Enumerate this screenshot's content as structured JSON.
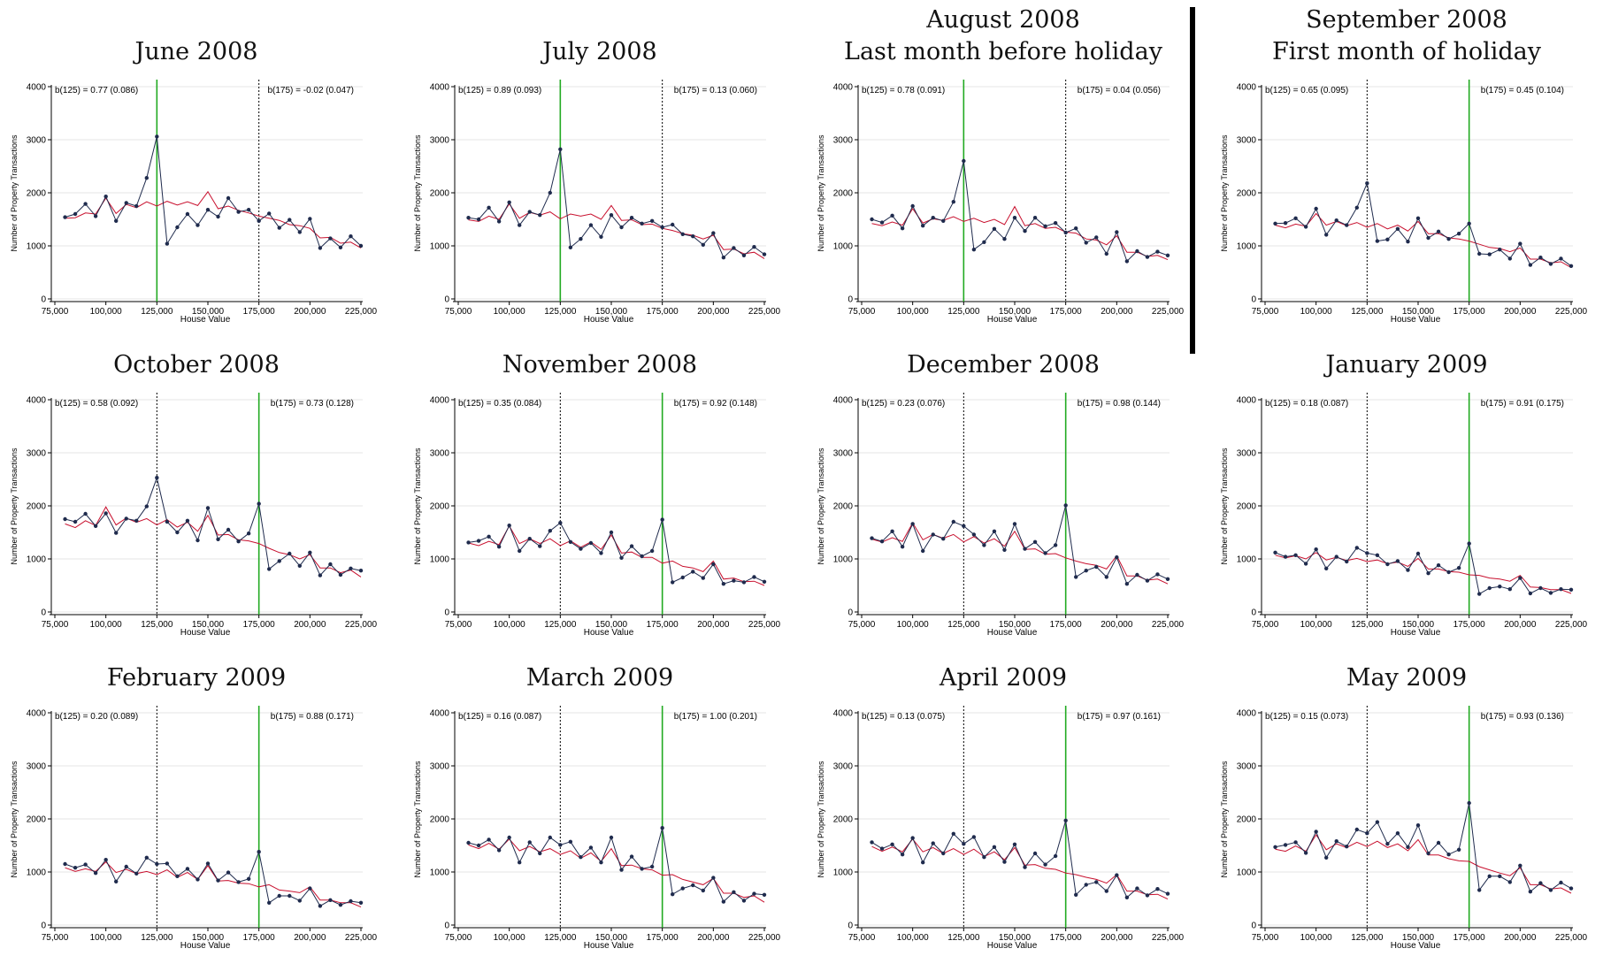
{
  "figure": {
    "colors": {
      "observed": "#1f2b4d",
      "counterfactual": "#c8102e",
      "threshold_active": "#22aa22",
      "threshold_inactive": "#000000"
    }
  },
  "chart_data": [
    {
      "type": "line",
      "title": "June 2008",
      "subtitle": "",
      "xlabel": "House Value",
      "ylabel": "Number of Property Transactions",
      "ylim": [
        0,
        4000
      ],
      "xlim": [
        75000,
        225000
      ],
      "xticks": [
        "75,000",
        "100,000",
        "125,000",
        "150,000",
        "175,000",
        "200,000",
        "225,000"
      ],
      "yticks": [
        "0",
        "1000",
        "2000",
        "3000",
        "4000"
      ],
      "annotations": {
        "left": "b(125) = 0.77 (0.086)",
        "right": "b(175) = -0.02 (0.047)"
      },
      "active_threshold": 125000,
      "inactive_threshold": 175000,
      "observed": [
        1540,
        1600,
        1790,
        1560,
        1930,
        1470,
        1810,
        1750,
        2280,
        3060,
        1040,
        1350,
        1600,
        1390,
        1680,
        1550,
        1900,
        1640,
        1680,
        1470,
        1610,
        1340,
        1490,
        1260,
        1510,
        960,
        1140,
        970,
        1180,
        1000
      ],
      "counterfactual": [
        1520,
        1530,
        1620,
        1600,
        1900,
        1610,
        1780,
        1720,
        1830,
        1750,
        1840,
        1770,
        1830,
        1760,
        2020,
        1700,
        1750,
        1670,
        1620,
        1560,
        1520,
        1480,
        1400,
        1380,
        1330,
        1150,
        1160,
        1050,
        1070,
        960
      ]
    },
    {
      "type": "line",
      "title": "July 2008",
      "subtitle": "",
      "xlabel": "House Value",
      "ylabel": "Number of Property Transactions",
      "ylim": [
        0,
        4000
      ],
      "xlim": [
        75000,
        225000
      ],
      "xticks": [
        "75,000",
        "100,000",
        "125,000",
        "150,000",
        "175,000",
        "200,000",
        "225,000"
      ],
      "yticks": [
        "0",
        "1000",
        "2000",
        "3000",
        "4000"
      ],
      "annotations": {
        "left": "b(125) = 0.89 (0.093)",
        "right": "b(175) = 0.13 (0.060)"
      },
      "active_threshold": 125000,
      "inactive_threshold": 175000,
      "observed": [
        1530,
        1500,
        1720,
        1460,
        1820,
        1390,
        1640,
        1580,
        2000,
        2820,
        970,
        1130,
        1390,
        1170,
        1580,
        1350,
        1530,
        1420,
        1470,
        1350,
        1400,
        1220,
        1180,
        1020,
        1240,
        780,
        960,
        820,
        980,
        840
      ],
      "counterfactual": [
        1490,
        1460,
        1560,
        1500,
        1790,
        1520,
        1630,
        1580,
        1640,
        1510,
        1600,
        1560,
        1600,
        1500,
        1760,
        1480,
        1490,
        1400,
        1410,
        1330,
        1290,
        1230,
        1200,
        1130,
        1200,
        930,
        940,
        850,
        880,
        760
      ]
    },
    {
      "type": "line",
      "title": "August 2008",
      "subtitle": "Last month before holiday",
      "xlabel": "House Value",
      "ylabel": "Number of Property Transactions",
      "ylim": [
        0,
        4000
      ],
      "xlim": [
        75000,
        225000
      ],
      "xticks": [
        "75,000",
        "100,000",
        "125,000",
        "150,000",
        "175,000",
        "200,000",
        "225,000"
      ],
      "yticks": [
        "0",
        "1000",
        "2000",
        "3000",
        "4000"
      ],
      "annotations": {
        "left": "b(125) = 0.78 (0.091)",
        "right": "b(175) = 0.04 (0.056)"
      },
      "active_threshold": 125000,
      "inactive_threshold": 175000,
      "observed": [
        1500,
        1440,
        1570,
        1330,
        1750,
        1380,
        1530,
        1470,
        1830,
        2600,
        930,
        1070,
        1320,
        1130,
        1530,
        1280,
        1530,
        1370,
        1430,
        1250,
        1330,
        1060,
        1160,
        850,
        1260,
        710,
        900,
        790,
        890,
        820
      ],
      "counterfactual": [
        1420,
        1380,
        1450,
        1390,
        1700,
        1430,
        1510,
        1480,
        1550,
        1460,
        1520,
        1440,
        1500,
        1400,
        1740,
        1380,
        1420,
        1330,
        1350,
        1260,
        1240,
        1130,
        1110,
        1020,
        1190,
        880,
        880,
        800,
        820,
        740
      ]
    },
    {
      "type": "line",
      "title": "September 2008",
      "subtitle": "First month of holiday",
      "xlabel": "House Value",
      "ylabel": "Number of Property Transactions",
      "ylim": [
        0,
        4000
      ],
      "xlim": [
        75000,
        225000
      ],
      "xticks": [
        "75,000",
        "100,000",
        "125,000",
        "150,000",
        "175,000",
        "200,000",
        "225,000"
      ],
      "yticks": [
        "0",
        "1000",
        "2000",
        "3000",
        "4000"
      ],
      "annotations": {
        "left": "b(125) = 0.65 (0.095)",
        "right": "b(175) = 0.45 (0.104)"
      },
      "active_threshold": 175000,
      "inactive_threshold": 125000,
      "observed": [
        1420,
        1430,
        1520,
        1360,
        1700,
        1210,
        1480,
        1390,
        1720,
        2180,
        1090,
        1120,
        1320,
        1080,
        1520,
        1150,
        1270,
        1130,
        1230,
        1420,
        850,
        840,
        930,
        760,
        1040,
        640,
        780,
        660,
        760,
        620
      ],
      "counterfactual": [
        1390,
        1340,
        1410,
        1370,
        1610,
        1390,
        1460,
        1380,
        1440,
        1350,
        1420,
        1320,
        1390,
        1280,
        1460,
        1230,
        1230,
        1150,
        1130,
        1090,
        1030,
        970,
        950,
        890,
        960,
        750,
        750,
        680,
        700,
        590
      ]
    },
    {
      "type": "line",
      "title": "October 2008",
      "subtitle": "",
      "xlabel": "House Value",
      "ylabel": "Number of Property Transactions",
      "ylim": [
        0,
        4000
      ],
      "xlim": [
        75000,
        225000
      ],
      "xticks": [
        "75,000",
        "100,000",
        "125,000",
        "150,000",
        "175,000",
        "200,000",
        "225,000"
      ],
      "yticks": [
        "0",
        "1000",
        "2000",
        "3000",
        "4000"
      ],
      "annotations": {
        "left": "b(125) = 0.58 (0.092)",
        "right": "b(175) = 0.73 (0.128)"
      },
      "active_threshold": 175000,
      "inactive_threshold": 125000,
      "observed": [
        1750,
        1700,
        1850,
        1620,
        1860,
        1490,
        1760,
        1720,
        1990,
        2530,
        1700,
        1500,
        1720,
        1350,
        1960,
        1370,
        1550,
        1330,
        1480,
        2040,
        810,
        960,
        1100,
        870,
        1120,
        690,
        900,
        700,
        820,
        780
      ],
      "counterfactual": [
        1660,
        1590,
        1720,
        1630,
        1980,
        1640,
        1770,
        1690,
        1760,
        1640,
        1740,
        1600,
        1690,
        1520,
        1820,
        1450,
        1460,
        1360,
        1340,
        1290,
        1200,
        1120,
        1080,
        1000,
        1080,
        830,
        830,
        740,
        790,
        660
      ]
    },
    {
      "type": "line",
      "title": "November 2008",
      "subtitle": "",
      "xlabel": "House Value",
      "ylabel": "Number of Property Transactions",
      "ylim": [
        0,
        4000
      ],
      "xlim": [
        75000,
        225000
      ],
      "xticks": [
        "75,000",
        "100,000",
        "125,000",
        "150,000",
        "175,000",
        "200,000",
        "225,000"
      ],
      "yticks": [
        "0",
        "1000",
        "2000",
        "3000",
        "4000"
      ],
      "annotations": {
        "left": "b(125) = 0.35 (0.084)",
        "right": "b(175) = 0.92 (0.148)"
      },
      "active_threshold": 175000,
      "inactive_threshold": 125000,
      "observed": [
        1310,
        1340,
        1420,
        1230,
        1630,
        1150,
        1380,
        1240,
        1530,
        1680,
        1320,
        1190,
        1300,
        1110,
        1500,
        1020,
        1240,
        1050,
        1150,
        1740,
        560,
        650,
        760,
        640,
        900,
        530,
        590,
        560,
        660,
        570
      ],
      "counterfactual": [
        1300,
        1250,
        1330,
        1270,
        1620,
        1290,
        1380,
        1290,
        1380,
        1250,
        1340,
        1220,
        1320,
        1180,
        1450,
        1110,
        1130,
        1030,
        1030,
        920,
        960,
        860,
        830,
        760,
        960,
        620,
        640,
        570,
        580,
        500
      ]
    },
    {
      "type": "line",
      "title": "December 2008",
      "subtitle": "",
      "xlabel": "House Value",
      "ylabel": "Number of Property Transactions",
      "ylim": [
        0,
        4000
      ],
      "xlim": [
        75000,
        225000
      ],
      "xticks": [
        "75,000",
        "100,000",
        "125,000",
        "150,000",
        "175,000",
        "200,000",
        "225,000"
      ],
      "yticks": [
        "0",
        "1000",
        "2000",
        "3000",
        "4000"
      ],
      "annotations": {
        "left": "b(125) = 0.23 (0.076)",
        "right": "b(175) = 0.98 (0.144)"
      },
      "active_threshold": 175000,
      "inactive_threshold": 125000,
      "observed": [
        1390,
        1330,
        1520,
        1230,
        1660,
        1150,
        1460,
        1380,
        1700,
        1620,
        1460,
        1260,
        1520,
        1170,
        1660,
        1190,
        1320,
        1110,
        1260,
        2010,
        660,
        780,
        850,
        660,
        1030,
        530,
        700,
        590,
        710,
        620
      ],
      "counterfactual": [
        1370,
        1320,
        1400,
        1330,
        1680,
        1360,
        1460,
        1390,
        1460,
        1320,
        1420,
        1300,
        1380,
        1240,
        1520,
        1180,
        1190,
        1090,
        1100,
        1020,
        960,
        910,
        880,
        810,
        1060,
        680,
        680,
        600,
        620,
        530
      ]
    },
    {
      "type": "line",
      "title": "January 2009",
      "subtitle": "",
      "xlabel": "House Value",
      "ylabel": "Number of Property Transactions",
      "ylim": [
        0,
        4000
      ],
      "xlim": [
        75000,
        225000
      ],
      "xticks": [
        "75,000",
        "100,000",
        "125,000",
        "150,000",
        "175,000",
        "200,000",
        "225,000"
      ],
      "yticks": [
        "0",
        "1000",
        "2000",
        "3000",
        "4000"
      ],
      "annotations": {
        "left": "b(125) = 0.18 (0.087)",
        "right": "b(175) = 0.91 (0.175)"
      },
      "active_threshold": 175000,
      "inactive_threshold": 125000,
      "observed": [
        1120,
        1040,
        1070,
        910,
        1180,
        820,
        1040,
        950,
        1210,
        1110,
        1070,
        900,
        960,
        790,
        1100,
        730,
        880,
        750,
        830,
        1290,
        340,
        450,
        480,
        430,
        640,
        350,
        450,
        360,
        430,
        420
      ],
      "counterfactual": [
        1070,
        1020,
        1060,
        1000,
        1120,
        980,
        1030,
        970,
        1010,
        950,
        980,
        910,
        940,
        860,
        1010,
        810,
        810,
        760,
        750,
        700,
        690,
        640,
        620,
        580,
        690,
        470,
        460,
        420,
        420,
        350
      ]
    },
    {
      "type": "line",
      "title": "February 2009",
      "subtitle": "",
      "xlabel": "House Value",
      "ylabel": "Number of Property Transactions",
      "ylim": [
        0,
        4000
      ],
      "xlim": [
        75000,
        225000
      ],
      "xticks": [
        "75,000",
        "100,000",
        "125,000",
        "150,000",
        "175,000",
        "200,000",
        "225,000"
      ],
      "yticks": [
        "0",
        "1000",
        "2000",
        "3000",
        "4000"
      ],
      "annotations": {
        "left": "b(125) = 0.20 (0.089)",
        "right": "b(175) = 0.88 (0.171)"
      },
      "active_threshold": 175000,
      "inactive_threshold": 125000,
      "observed": [
        1150,
        1080,
        1140,
        980,
        1230,
        820,
        1100,
        970,
        1270,
        1150,
        1160,
        920,
        1060,
        860,
        1160,
        840,
        990,
        810,
        870,
        1380,
        420,
        550,
        550,
        460,
        690,
        360,
        470,
        380,
        450,
        420
      ],
      "counterfactual": [
        1080,
        1010,
        1060,
        1010,
        1190,
        990,
        1050,
        970,
        1010,
        950,
        1040,
        900,
        990,
        860,
        1120,
        830,
        840,
        790,
        780,
        720,
        760,
        660,
        640,
        610,
        720,
        470,
        470,
        420,
        420,
        340
      ]
    },
    {
      "type": "line",
      "title": "March 2009",
      "subtitle": "",
      "xlabel": "House Value",
      "ylabel": "Number of Property Transactions",
      "ylim": [
        0,
        4000
      ],
      "xlim": [
        75000,
        225000
      ],
      "xticks": [
        "75,000",
        "100,000",
        "125,000",
        "150,000",
        "175,000",
        "200,000",
        "225,000"
      ],
      "yticks": [
        "0",
        "1000",
        "2000",
        "3000",
        "4000"
      ],
      "annotations": {
        "left": "b(125) = 0.16 (0.087)",
        "right": "b(175) = 1.00 (0.201)"
      },
      "active_threshold": 175000,
      "inactive_threshold": 125000,
      "observed": [
        1550,
        1500,
        1610,
        1410,
        1650,
        1180,
        1560,
        1350,
        1650,
        1510,
        1570,
        1280,
        1460,
        1180,
        1650,
        1040,
        1290,
        1060,
        1100,
        1830,
        580,
        690,
        750,
        650,
        890,
        440,
        620,
        460,
        590,
        570
      ],
      "counterfactual": [
        1510,
        1440,
        1540,
        1430,
        1620,
        1400,
        1480,
        1380,
        1440,
        1330,
        1400,
        1260,
        1360,
        1200,
        1440,
        1120,
        1130,
        1060,
        1040,
        940,
        950,
        860,
        810,
        760,
        880,
        600,
        600,
        520,
        550,
        430
      ]
    },
    {
      "type": "line",
      "title": "April 2009",
      "subtitle": "",
      "xlabel": "House Value",
      "ylabel": "Number of Property Transactions",
      "ylim": [
        0,
        4000
      ],
      "xlim": [
        75000,
        225000
      ],
      "xticks": [
        "75,000",
        "100,000",
        "125,000",
        "150,000",
        "175,000",
        "200,000",
        "225,000"
      ],
      "yticks": [
        "0",
        "1000",
        "2000",
        "3000",
        "4000"
      ],
      "annotations": {
        "left": "b(125) = 0.13 (0.075)",
        "right": "b(175) = 0.97 (0.161)"
      },
      "active_threshold": 175000,
      "inactive_threshold": 125000,
      "observed": [
        1560,
        1440,
        1520,
        1330,
        1640,
        1180,
        1540,
        1350,
        1720,
        1530,
        1660,
        1280,
        1470,
        1190,
        1520,
        1090,
        1350,
        1140,
        1300,
        1970,
        570,
        760,
        810,
        640,
        940,
        520,
        690,
        560,
        680,
        590
      ],
      "counterfactual": [
        1480,
        1390,
        1470,
        1380,
        1620,
        1380,
        1460,
        1350,
        1440,
        1330,
        1430,
        1290,
        1380,
        1230,
        1460,
        1130,
        1140,
        1070,
        1050,
        980,
        950,
        900,
        860,
        790,
        950,
        640,
        640,
        570,
        580,
        490
      ]
    },
    {
      "type": "line",
      "title": "May 2009",
      "subtitle": "",
      "xlabel": "House Value",
      "ylabel": "Number of Property Transactions",
      "ylim": [
        0,
        4000
      ],
      "xlim": [
        75000,
        225000
      ],
      "xticks": [
        "75,000",
        "100,000",
        "125,000",
        "150,000",
        "175,000",
        "200,000",
        "225,000"
      ],
      "yticks": [
        "0",
        "1000",
        "2000",
        "3000",
        "4000"
      ],
      "annotations": {
        "left": "b(125) = 0.15 (0.073)",
        "right": "b(175) = 0.93 (0.136)"
      },
      "active_threshold": 175000,
      "inactive_threshold": 125000,
      "observed": [
        1470,
        1510,
        1560,
        1360,
        1760,
        1270,
        1580,
        1480,
        1800,
        1730,
        1940,
        1530,
        1730,
        1470,
        1880,
        1350,
        1550,
        1330,
        1420,
        2300,
        660,
        920,
        920,
        810,
        1120,
        630,
        790,
        660,
        800,
        690
      ],
      "counterfactual": [
        1430,
        1390,
        1490,
        1390,
        1700,
        1420,
        1530,
        1460,
        1560,
        1480,
        1580,
        1460,
        1530,
        1400,
        1610,
        1320,
        1320,
        1250,
        1210,
        1200,
        1100,
        1040,
        980,
        930,
        1080,
        760,
        760,
        680,
        700,
        600
      ]
    }
  ]
}
